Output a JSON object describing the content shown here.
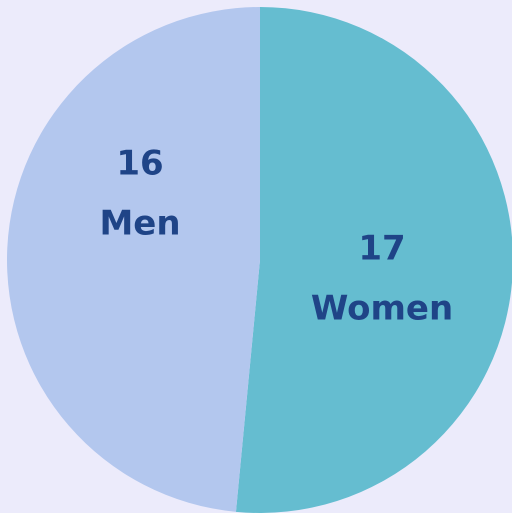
{
  "chart_data": {
    "type": "pie",
    "categories": [
      "Women",
      "Men"
    ],
    "values": [
      17,
      16
    ],
    "colors": [
      "#65bdd0",
      "#b3c7ee"
    ]
  }
}
